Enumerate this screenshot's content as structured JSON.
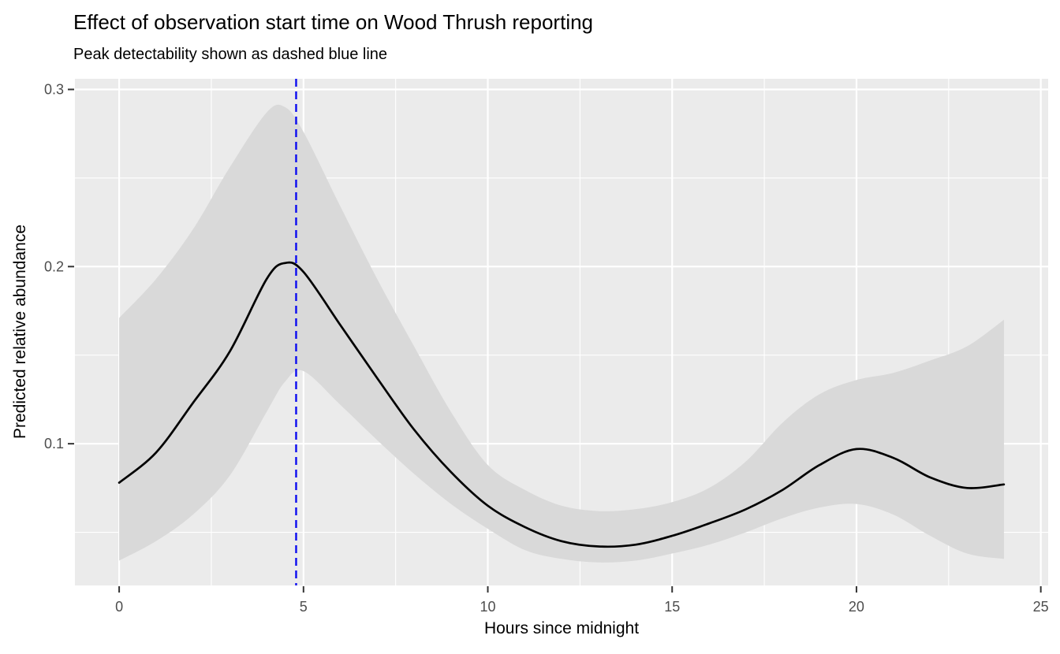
{
  "title": "Effect of observation start time on Wood Thrush reporting",
  "subtitle": "Peak detectability shown as dashed blue line",
  "colors": {
    "background": "#ffffff",
    "panel": "#ebebeb",
    "grid": "#ffffff",
    "ribbon": "#d9d9d9",
    "line": "#000000",
    "vline": "#0b0bf0",
    "tick_label": "#4d4d4d",
    "tick_mark": "#333333",
    "text": "#000000"
  },
  "chart_data": {
    "type": "line",
    "title": "Effect of observation start time on Wood Thrush reporting",
    "subtitle": "Peak detectability shown as dashed blue line",
    "xlabel": "Hours since midnight",
    "ylabel": "Predicted relative abundance",
    "x": [
      0,
      1,
      2,
      3,
      4,
      4.5,
      5,
      6,
      7,
      8,
      9,
      10,
      11,
      12,
      13,
      14,
      15,
      16,
      17,
      18,
      19,
      20,
      21,
      22,
      23,
      24
    ],
    "series": [
      {
        "name": "fit",
        "values": [
          0.078,
          0.095,
          0.123,
          0.152,
          0.193,
          0.202,
          0.197,
          0.167,
          0.137,
          0.108,
          0.084,
          0.065,
          0.053,
          0.045,
          0.042,
          0.043,
          0.048,
          0.055,
          0.063,
          0.074,
          0.088,
          0.097,
          0.092,
          0.081,
          0.075,
          0.077
        ]
      },
      {
        "name": "ci_upper",
        "values": [
          0.171,
          0.193,
          0.221,
          0.256,
          0.287,
          0.29,
          0.276,
          0.234,
          0.193,
          0.155,
          0.118,
          0.088,
          0.074,
          0.065,
          0.062,
          0.063,
          0.067,
          0.075,
          0.09,
          0.112,
          0.128,
          0.136,
          0.14,
          0.147,
          0.155,
          0.17
        ]
      },
      {
        "name": "ci_lower",
        "values": [
          0.034,
          0.045,
          0.06,
          0.082,
          0.118,
          0.135,
          0.141,
          0.122,
          0.102,
          0.083,
          0.066,
          0.052,
          0.04,
          0.035,
          0.033,
          0.034,
          0.038,
          0.043,
          0.05,
          0.058,
          0.064,
          0.066,
          0.06,
          0.048,
          0.038,
          0.035
        ]
      }
    ],
    "vline": {
      "x": 4.8,
      "style": "dashed",
      "meaning": "peak detectability"
    },
    "layout": {
      "x_range": [
        -1.2,
        25.2
      ],
      "y_range": [
        0.02,
        0.306
      ],
      "x_ticks": [
        0,
        5,
        10,
        15,
        20,
        25
      ],
      "x_tick_labels": [
        "0",
        "5",
        "10",
        "15",
        "20",
        "25"
      ],
      "x_minor_ticks": [
        2.5,
        7.5,
        12.5,
        17.5,
        22.5
      ],
      "y_ticks": [
        0.1,
        0.2,
        0.3
      ],
      "y_tick_labels": [
        "0.1",
        "0.2",
        "0.3"
      ],
      "y_minor_ticks": [
        0.05,
        0.15,
        0.25
      ],
      "grid": true,
      "legend": "none",
      "theme": "ggplot-grey"
    }
  }
}
